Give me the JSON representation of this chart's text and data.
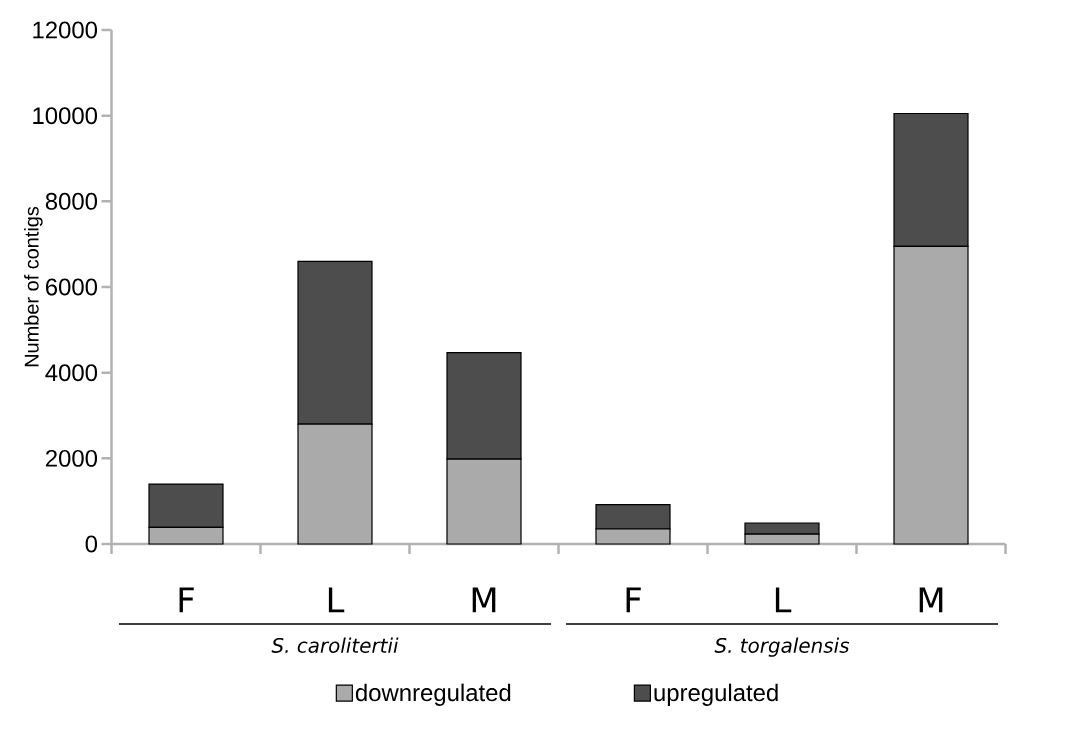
{
  "chart_data": {
    "type": "bar",
    "stacked": true,
    "ylabel": "Number of contigs",
    "categories": [
      "F",
      "L",
      "M",
      "F",
      "L",
      "M"
    ],
    "series": [
      {
        "name": "downregulated",
        "color": "#aaaaaa",
        "values": [
          390,
          2800,
          1980,
          350,
          230,
          6950
        ]
      },
      {
        "name": "upregulated",
        "color": "#4d4d4d",
        "values": [
          1010,
          3800,
          2490,
          570,
          260,
          3100
        ]
      }
    ],
    "ylim": [
      0,
      12000
    ],
    "yticks": [
      0,
      2000,
      4000,
      6000,
      8000,
      10000,
      12000
    ],
    "grid": false,
    "legend": "bottom",
    "annotations": [
      "S. carolitertii",
      "S. torgalensis"
    ]
  }
}
